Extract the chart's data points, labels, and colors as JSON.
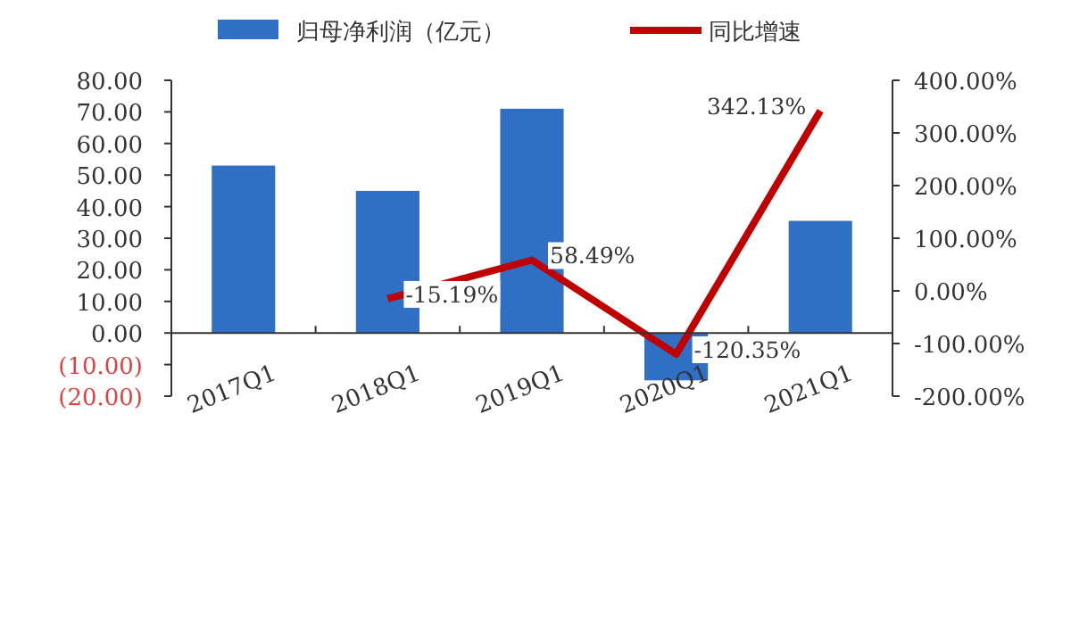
{
  "chart_data": {
    "type": "bar",
    "categories": [
      "2017Q1",
      "2018Q1",
      "2019Q1",
      "2020Q1",
      "2021Q1"
    ],
    "series": [
      {
        "name": "归母净利润（亿元）",
        "color": "#2f70c4",
        "values": [
          53,
          45,
          71,
          -15,
          35.5
        ]
      },
      {
        "name": "同比增速",
        "type": "line",
        "axis": "y2",
        "color": "#c00000",
        "values": [
          null,
          -15.19,
          58.49,
          -120.35,
          342.13
        ],
        "value_labels": [
          null,
          "-15.19%",
          "58.49%",
          "-120.35%",
          "342.13%"
        ]
      }
    ],
    "ylim": [
      -20,
      80
    ],
    "yticks": [
      {
        "value": -20,
        "label": "(20.00)"
      },
      {
        "value": -10,
        "label": "(10.00)"
      },
      {
        "value": 0,
        "label": "0.00"
      },
      {
        "value": 10,
        "label": "10.00"
      },
      {
        "value": 20,
        "label": "20.00"
      },
      {
        "value": 30,
        "label": "30.00"
      },
      {
        "value": 40,
        "label": "40.00"
      },
      {
        "value": 50,
        "label": "50.00"
      },
      {
        "value": 60,
        "label": "60.00"
      },
      {
        "value": 70,
        "label": "70.00"
      },
      {
        "value": 80,
        "label": "80.00"
      }
    ],
    "y2lim": [
      -200,
      400
    ],
    "y2ticks": [
      {
        "value": -200,
        "label": "-200.00%"
      },
      {
        "value": -100,
        "label": "-100.00%"
      },
      {
        "value": 0,
        "label": "0.00%"
      },
      {
        "value": 100,
        "label": "100.00%"
      },
      {
        "value": 200,
        "label": "200.00%"
      },
      {
        "value": 300,
        "label": "300.00%"
      },
      {
        "value": 400,
        "label": "400.00%"
      }
    ],
    "legend": "top",
    "grid": false
  }
}
